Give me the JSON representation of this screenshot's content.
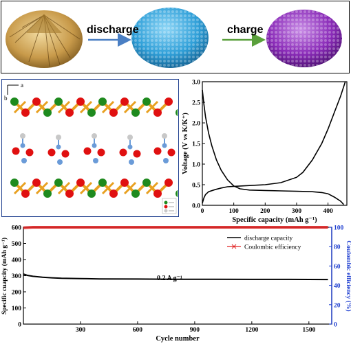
{
  "scheme": {
    "discharge_label": "discharge",
    "charge_label": "charge",
    "colors": {
      "gold": "#c89a4a",
      "blue": "#2f9fd8",
      "purple": "#8a2bb8",
      "arrow_blue": "#4a7fc4",
      "arrow_green": "#5aa03c"
    }
  },
  "crystal": {
    "axis_a": "a",
    "axis_b": "b",
    "atom_colors": {
      "red": "#e01010",
      "green": "#1e8a1e",
      "blue": "#6a9bd8",
      "gray": "#c8c8c8",
      "bond": "#e8a020"
    }
  },
  "chart_data": [
    {
      "id": "voltage",
      "type": "line",
      "xlabel": "Specific capacity (mAh g⁻¹)",
      "ylabel": "Voltage (V vs K/K⁺)",
      "xlim": [
        0,
        460
      ],
      "ylim": [
        0,
        3.0
      ],
      "xticks": [
        "0",
        "100",
        "200",
        "300",
        "400"
      ],
      "yticks": [
        "0.0",
        "0.5",
        "1.0",
        "1.5",
        "2.0",
        "2.5",
        "3.0"
      ],
      "series": [
        {
          "role": "discharge",
          "x": [
            0,
            5,
            10,
            20,
            30,
            45,
            60,
            80,
            100,
            120,
            150,
            200,
            250,
            300,
            350,
            380,
            400,
            420,
            440,
            450
          ],
          "y": [
            2.8,
            2.45,
            2.15,
            1.75,
            1.45,
            1.1,
            0.85,
            0.62,
            0.47,
            0.4,
            0.37,
            0.36,
            0.35,
            0.34,
            0.33,
            0.31,
            0.28,
            0.2,
            0.1,
            0.02
          ]
        },
        {
          "role": "charge",
          "x": [
            0,
            5,
            10,
            20,
            40,
            60,
            80,
            100,
            150,
            200,
            250,
            300,
            320,
            350,
            380,
            400,
            420,
            440,
            455
          ],
          "y": [
            0.05,
            0.18,
            0.26,
            0.33,
            0.38,
            0.42,
            0.45,
            0.46,
            0.48,
            0.5,
            0.55,
            0.68,
            0.8,
            1.1,
            1.5,
            1.85,
            2.25,
            2.65,
            3.0
          ]
        }
      ],
      "colors": [
        "#000000",
        "#000000"
      ],
      "grid": false
    },
    {
      "id": "cycling",
      "type": "line",
      "xlabel": "Cycle number",
      "ylabel": "Specific cuapcity (mAh g⁻¹)",
      "y2label": "Coulombic efficiency (%)",
      "xlim": [
        0,
        1620
      ],
      "ylim": [
        0,
        600
      ],
      "y2lim": [
        0,
        100
      ],
      "xticks": [
        "300",
        "600",
        "900",
        "1200",
        "1500"
      ],
      "yticks": [
        "0",
        "100",
        "200",
        "300",
        "400",
        "500",
        "600"
      ],
      "y2ticks": [
        "0",
        "20",
        "40",
        "60",
        "80",
        "100"
      ],
      "annotation": "0.2 A g⁻¹",
      "legend_position": "top-right",
      "series": [
        {
          "name": "discharge capacity",
          "x": [
            0,
            20,
            50,
            100,
            150,
            200,
            300,
            400,
            600,
            800,
            1000,
            1200,
            1400,
            1600
          ],
          "y": [
            310,
            302,
            296,
            290,
            287,
            284,
            282,
            280,
            279,
            278,
            278,
            277,
            277,
            276
          ],
          "color": "#000000",
          "axis": "left"
        },
        {
          "name": "Coulombic efficiency",
          "x": [
            0,
            50,
            200,
            400,
            600,
            800,
            1000,
            1200,
            1400,
            1600
          ],
          "y": [
            99.5,
            100,
            100,
            100,
            100,
            100,
            100,
            100,
            100,
            100
          ],
          "color": "#e02020",
          "axis": "right"
        }
      ],
      "grid": false
    }
  ]
}
